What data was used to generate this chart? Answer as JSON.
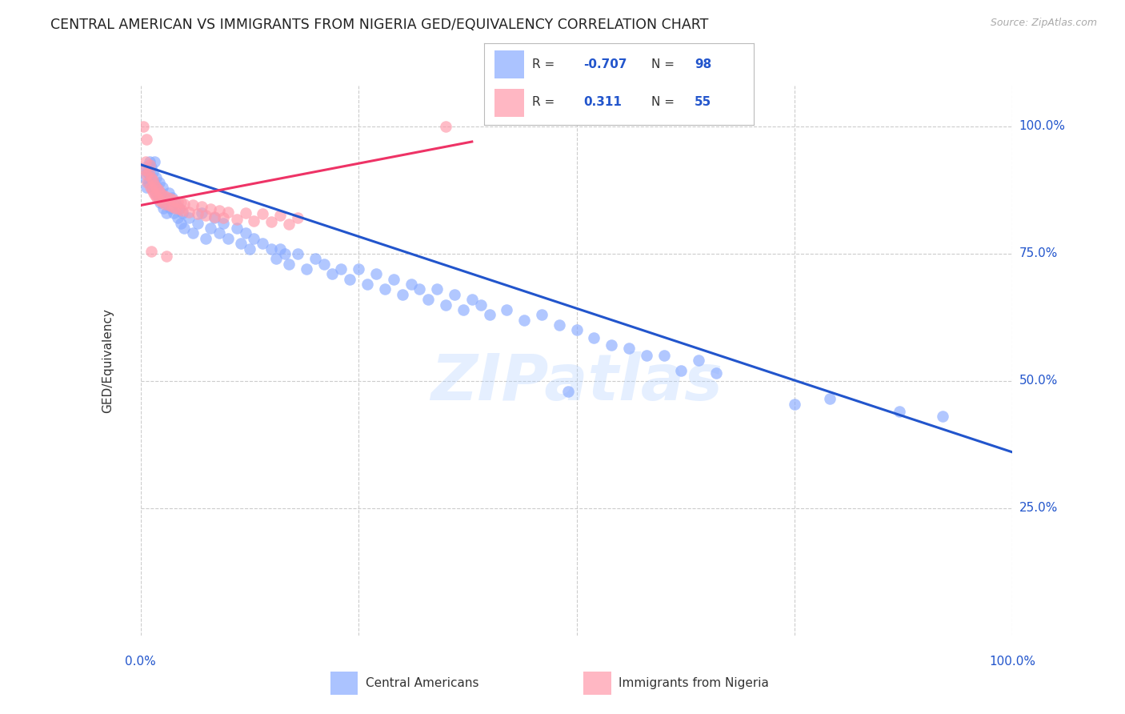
{
  "title": "CENTRAL AMERICAN VS IMMIGRANTS FROM NIGERIA GED/EQUIVALENCY CORRELATION CHART",
  "source": "Source: ZipAtlas.com",
  "ylabel": "GED/Equivalency",
  "watermark": "ZIPatlas",
  "blue_R": "-0.707",
  "blue_N": "98",
  "pink_R": "0.311",
  "pink_N": "55",
  "blue_color": "#88aaff",
  "pink_color": "#ff99aa",
  "trendline_blue": "#2255cc",
  "trendline_pink": "#ee3366",
  "legend_blue_label": "Central Americans",
  "legend_pink_label": "Immigrants from Nigeria",
  "blue_scatter": [
    [
      0.005,
      0.9
    ],
    [
      0.006,
      0.92
    ],
    [
      0.007,
      0.88
    ],
    [
      0.008,
      0.91
    ],
    [
      0.009,
      0.89
    ],
    [
      0.01,
      0.93
    ],
    [
      0.011,
      0.9
    ],
    [
      0.012,
      0.92
    ],
    [
      0.013,
      0.88
    ],
    [
      0.014,
      0.91
    ],
    [
      0.015,
      0.89
    ],
    [
      0.016,
      0.93
    ],
    [
      0.017,
      0.87
    ],
    [
      0.018,
      0.9
    ],
    [
      0.019,
      0.88
    ],
    [
      0.02,
      0.86
    ],
    [
      0.021,
      0.89
    ],
    [
      0.022,
      0.85
    ],
    [
      0.023,
      0.87
    ],
    [
      0.024,
      0.86
    ],
    [
      0.025,
      0.88
    ],
    [
      0.026,
      0.84
    ],
    [
      0.027,
      0.86
    ],
    [
      0.028,
      0.85
    ],
    [
      0.03,
      0.83
    ],
    [
      0.032,
      0.87
    ],
    [
      0.034,
      0.84
    ],
    [
      0.036,
      0.86
    ],
    [
      0.038,
      0.83
    ],
    [
      0.04,
      0.85
    ],
    [
      0.042,
      0.82
    ],
    [
      0.044,
      0.84
    ],
    [
      0.046,
      0.81
    ],
    [
      0.048,
      0.83
    ],
    [
      0.05,
      0.8
    ],
    [
      0.055,
      0.82
    ],
    [
      0.06,
      0.79
    ],
    [
      0.065,
      0.81
    ],
    [
      0.07,
      0.83
    ],
    [
      0.075,
      0.78
    ],
    [
      0.08,
      0.8
    ],
    [
      0.085,
      0.82
    ],
    [
      0.09,
      0.79
    ],
    [
      0.095,
      0.81
    ],
    [
      0.1,
      0.78
    ],
    [
      0.11,
      0.8
    ],
    [
      0.115,
      0.77
    ],
    [
      0.12,
      0.79
    ],
    [
      0.125,
      0.76
    ],
    [
      0.13,
      0.78
    ],
    [
      0.14,
      0.77
    ],
    [
      0.15,
      0.76
    ],
    [
      0.155,
      0.74
    ],
    [
      0.16,
      0.76
    ],
    [
      0.165,
      0.75
    ],
    [
      0.17,
      0.73
    ],
    [
      0.18,
      0.75
    ],
    [
      0.19,
      0.72
    ],
    [
      0.2,
      0.74
    ],
    [
      0.21,
      0.73
    ],
    [
      0.22,
      0.71
    ],
    [
      0.23,
      0.72
    ],
    [
      0.24,
      0.7
    ],
    [
      0.25,
      0.72
    ],
    [
      0.26,
      0.69
    ],
    [
      0.27,
      0.71
    ],
    [
      0.28,
      0.68
    ],
    [
      0.29,
      0.7
    ],
    [
      0.3,
      0.67
    ],
    [
      0.31,
      0.69
    ],
    [
      0.32,
      0.68
    ],
    [
      0.33,
      0.66
    ],
    [
      0.34,
      0.68
    ],
    [
      0.35,
      0.65
    ],
    [
      0.36,
      0.67
    ],
    [
      0.37,
      0.64
    ],
    [
      0.38,
      0.66
    ],
    [
      0.39,
      0.65
    ],
    [
      0.4,
      0.63
    ],
    [
      0.42,
      0.64
    ],
    [
      0.44,
      0.62
    ],
    [
      0.46,
      0.63
    ],
    [
      0.48,
      0.61
    ],
    [
      0.5,
      0.6
    ],
    [
      0.52,
      0.585
    ],
    [
      0.54,
      0.57
    ],
    [
      0.56,
      0.565
    ],
    [
      0.58,
      0.55
    ],
    [
      0.49,
      0.48
    ],
    [
      0.6,
      0.55
    ],
    [
      0.62,
      0.52
    ],
    [
      0.64,
      0.54
    ],
    [
      0.66,
      0.515
    ],
    [
      0.75,
      0.455
    ],
    [
      0.79,
      0.465
    ],
    [
      0.87,
      0.44
    ],
    [
      0.92,
      0.43
    ]
  ],
  "pink_scatter": [
    [
      0.003,
      1.0
    ],
    [
      0.007,
      0.975
    ],
    [
      0.005,
      0.915
    ],
    [
      0.006,
      0.93
    ],
    [
      0.007,
      0.905
    ],
    [
      0.008,
      0.89
    ],
    [
      0.009,
      0.91
    ],
    [
      0.01,
      0.925
    ],
    [
      0.011,
      0.88
    ],
    [
      0.012,
      0.9
    ],
    [
      0.013,
      0.875
    ],
    [
      0.014,
      0.895
    ],
    [
      0.015,
      0.87
    ],
    [
      0.016,
      0.885
    ],
    [
      0.017,
      0.865
    ],
    [
      0.018,
      0.88
    ],
    [
      0.019,
      0.86
    ],
    [
      0.02,
      0.875
    ],
    [
      0.021,
      0.855
    ],
    [
      0.022,
      0.87
    ],
    [
      0.024,
      0.852
    ],
    [
      0.026,
      0.865
    ],
    [
      0.028,
      0.848
    ],
    [
      0.03,
      0.862
    ],
    [
      0.032,
      0.845
    ],
    [
      0.034,
      0.858
    ],
    [
      0.036,
      0.842
    ],
    [
      0.038,
      0.855
    ],
    [
      0.04,
      0.84
    ],
    [
      0.042,
      0.852
    ],
    [
      0.044,
      0.838
    ],
    [
      0.046,
      0.85
    ],
    [
      0.048,
      0.835
    ],
    [
      0.05,
      0.848
    ],
    [
      0.055,
      0.832
    ],
    [
      0.06,
      0.845
    ],
    [
      0.065,
      0.828
    ],
    [
      0.07,
      0.842
    ],
    [
      0.075,
      0.825
    ],
    [
      0.08,
      0.838
    ],
    [
      0.085,
      0.822
    ],
    [
      0.09,
      0.835
    ],
    [
      0.095,
      0.82
    ],
    [
      0.1,
      0.832
    ],
    [
      0.11,
      0.818
    ],
    [
      0.12,
      0.83
    ],
    [
      0.13,
      0.815
    ],
    [
      0.14,
      0.828
    ],
    [
      0.15,
      0.812
    ],
    [
      0.16,
      0.825
    ],
    [
      0.17,
      0.808
    ],
    [
      0.18,
      0.82
    ],
    [
      0.012,
      0.755
    ],
    [
      0.03,
      0.745
    ],
    [
      0.35,
      1.0
    ]
  ],
  "blue_trend_x": [
    0.0,
    1.0
  ],
  "blue_trend_y": [
    0.925,
    0.36
  ],
  "pink_trend_x": [
    0.0,
    0.38
  ],
  "pink_trend_y": [
    0.845,
    0.97
  ],
  "ylim": [
    0.0,
    1.08
  ],
  "xlim": [
    0.0,
    1.0
  ],
  "ytick_positions": [
    0.25,
    0.5,
    0.75,
    1.0
  ],
  "ytick_labels": [
    "25.0%",
    "50.0%",
    "75.0%",
    "100.0%"
  ],
  "background_color": "#ffffff",
  "grid_color": "#cccccc",
  "title_fontsize": 12.5,
  "axis_fontsize": 11
}
